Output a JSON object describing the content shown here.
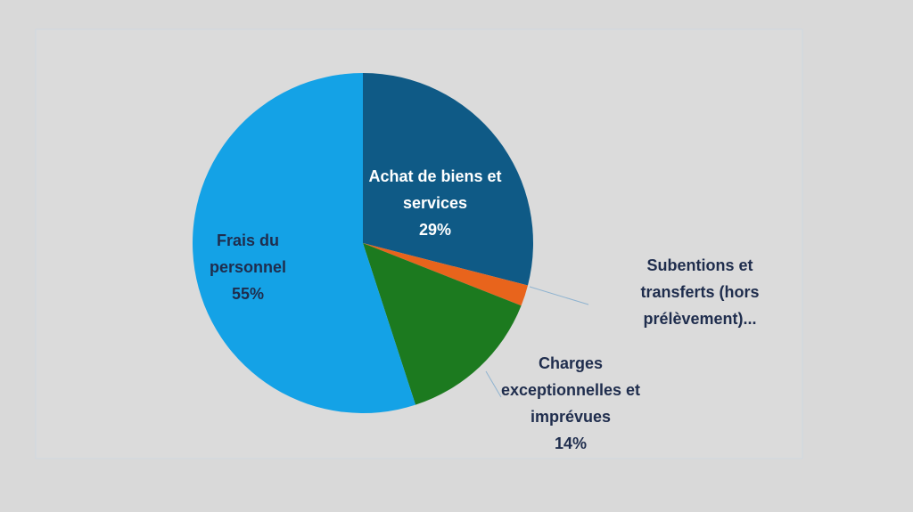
{
  "chart_data": {
    "type": "pie",
    "categories": [
      "Achat de biens et services",
      "Subentions et transferts (hors prélèvement)...",
      "Charges exceptionnelles et imprévues",
      "Frais du personnel"
    ],
    "values": [
      29,
      2,
      14,
      55
    ],
    "value_labels": [
      "29%",
      null,
      "14%",
      "55%"
    ],
    "colors": [
      "#0f5a86",
      "#e8641c",
      "#1c7a1f",
      "#14a2e6"
    ]
  }
}
